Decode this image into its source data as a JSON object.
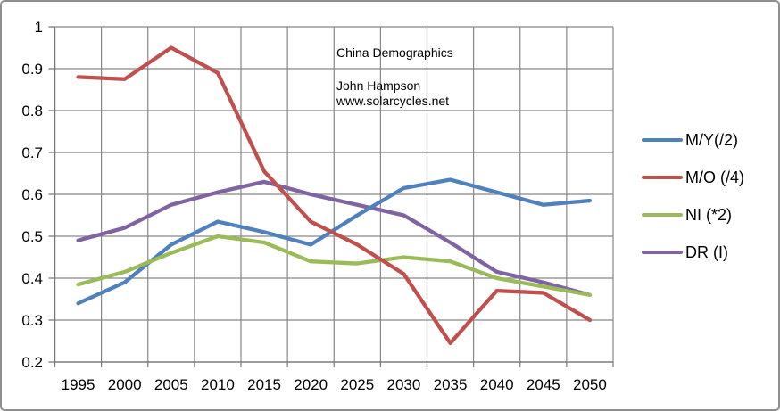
{
  "header": {
    "title": "China Demographics",
    "author": "John Hampson",
    "website": "www.solarcycles.net"
  },
  "colors": {
    "background": "#FFFFFF",
    "frame_border": "#8F8F8F",
    "gridline": "#878787",
    "axis": "#757575",
    "text": "#000000"
  },
  "chart_data": {
    "type": "line",
    "title": "China Demographics",
    "annotations": [
      "China Demographics",
      "John Hampson",
      "www.solarcycles.net"
    ],
    "categories": [
      "1995",
      "2000",
      "2005",
      "2010",
      "2015",
      "2020",
      "2025",
      "2030",
      "2035",
      "2040",
      "2045",
      "2050"
    ],
    "series": [
      {
        "name": "M/Y(/2)",
        "color": "#4F81BD",
        "values": [
          0.34,
          0.39,
          0.48,
          0.535,
          0.51,
          0.48,
          0.55,
          0.615,
          0.635,
          0.605,
          0.575,
          0.585
        ]
      },
      {
        "name": "M/O (/4)",
        "color": "#C0504D",
        "values": [
          0.88,
          0.875,
          0.95,
          0.89,
          0.655,
          0.535,
          0.48,
          0.41,
          0.245,
          0.37,
          0.365,
          0.3
        ]
      },
      {
        "name": "NI (*2)",
        "color": "#9BBB59",
        "values": [
          0.385,
          0.415,
          0.46,
          0.5,
          0.485,
          0.44,
          0.435,
          0.45,
          0.44,
          0.4,
          0.38,
          0.36
        ]
      },
      {
        "name": "DR (I)",
        "color": "#8064A2",
        "values": [
          0.49,
          0.52,
          0.575,
          0.605,
          0.63,
          0.6,
          0.575,
          0.55,
          0.485,
          0.415,
          0.39,
          0.36
        ]
      }
    ],
    "xlabel": "",
    "ylabel": "",
    "ylim": [
      0.2,
      1.0
    ],
    "ytick_labels": [
      "1",
      "0.9",
      "0.8",
      "0.7",
      "0.6",
      "0.5",
      "0.4",
      "0.3",
      "0.2"
    ],
    "grid": true,
    "legend_position": "right"
  }
}
